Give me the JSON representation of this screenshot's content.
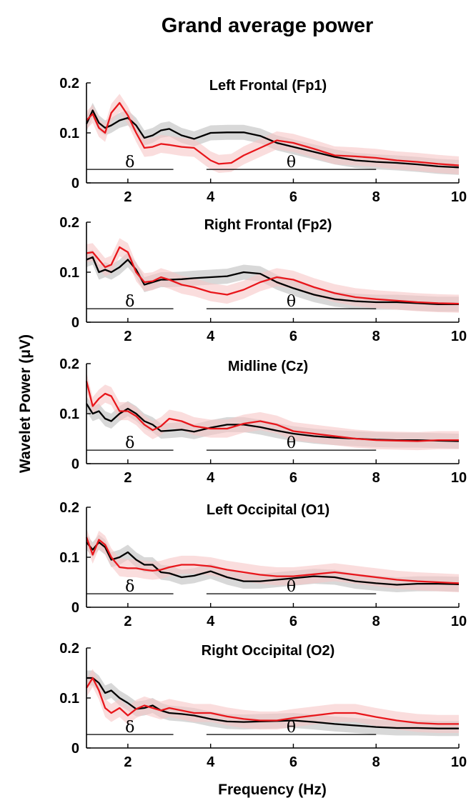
{
  "colors": {
    "series_1": "#000000",
    "series_2": "#e8161b",
    "band_1": "#c8c8c8",
    "band_2": "#f7c6c6"
  },
  "chart_data": {
    "type": "line",
    "title": "Grand average power",
    "xlabel": "Frequency (Hz)",
    "ylabel": "Wavelet Power (μV)",
    "xlim": [
      1,
      10
    ],
    "ylim": [
      0,
      0.2
    ],
    "xticks": [
      "2",
      "4",
      "6",
      "8",
      "10"
    ],
    "yticks": [
      "0",
      "0.1",
      "0.2"
    ],
    "grid": false,
    "bands": [
      {
        "label": "δ",
        "from": 1,
        "to": 3.1,
        "y": 0.027
      },
      {
        "label": "θ",
        "from": 3.9,
        "to": 8,
        "y": 0.027
      }
    ],
    "panels": [
      {
        "title": "Left Frontal (Fp1)",
        "series": [
          {
            "x": [
              1,
              1.15,
              1.3,
              1.45,
              1.6,
              1.8,
              2,
              2.2,
              2.4,
              2.6,
              2.8,
              3,
              3.3,
              3.6,
              4,
              4.4,
              4.8,
              5.2,
              5.6,
              6,
              6.5,
              7,
              7.5,
              8,
              8.5,
              9,
              9.5,
              10
            ],
            "values": [
              0.118,
              0.145,
              0.12,
              0.11,
              0.115,
              0.125,
              0.13,
              0.115,
              0.09,
              0.095,
              0.105,
              0.108,
              0.095,
              0.088,
              0.1,
              0.101,
              0.101,
              0.094,
              0.08,
              0.072,
              0.062,
              0.052,
              0.045,
              0.042,
              0.04,
              0.037,
              0.033,
              0.031
            ],
            "error": 0.015
          },
          {
            "x": [
              1,
              1.15,
              1.3,
              1.45,
              1.6,
              1.8,
              2,
              2.2,
              2.4,
              2.6,
              2.8,
              3,
              3.3,
              3.6,
              4,
              4.2,
              4.5,
              4.8,
              5.2,
              5.6,
              6,
              6.5,
              7,
              7.5,
              8,
              8.5,
              9,
              9.5,
              10
            ],
            "values": [
              0.125,
              0.138,
              0.11,
              0.1,
              0.14,
              0.16,
              0.135,
              0.1,
              0.07,
              0.072,
              0.078,
              0.076,
              0.072,
              0.07,
              0.045,
              0.038,
              0.04,
              0.055,
              0.07,
              0.085,
              0.08,
              0.068,
              0.055,
              0.053,
              0.05,
              0.045,
              0.042,
              0.038,
              0.035
            ],
            "error": 0.018
          }
        ]
      },
      {
        "title": "Right Frontal (Fp2)",
        "series": [
          {
            "x": [
              1,
              1.15,
              1.3,
              1.45,
              1.6,
              1.8,
              2,
              2.2,
              2.4,
              2.6,
              2.8,
              3,
              3.3,
              3.6,
              4,
              4.4,
              4.8,
              5.2,
              5.6,
              6,
              6.5,
              7,
              7.5,
              8,
              8.5,
              9,
              9.5,
              10
            ],
            "values": [
              0.125,
              0.13,
              0.1,
              0.105,
              0.1,
              0.11,
              0.125,
              0.105,
              0.075,
              0.08,
              0.085,
              0.085,
              0.086,
              0.088,
              0.09,
              0.092,
              0.1,
              0.097,
              0.08,
              0.068,
              0.055,
              0.046,
              0.042,
              0.04,
              0.04,
              0.038,
              0.036,
              0.036
            ],
            "error": 0.015
          },
          {
            "x": [
              1,
              1.15,
              1.3,
              1.45,
              1.6,
              1.8,
              2,
              2.2,
              2.4,
              2.6,
              2.8,
              3,
              3.3,
              3.6,
              4,
              4.4,
              4.8,
              5.2,
              5.6,
              6,
              6.5,
              7,
              7.5,
              8,
              8.5,
              9,
              9.5,
              10
            ],
            "values": [
              0.138,
              0.14,
              0.125,
              0.11,
              0.115,
              0.15,
              0.14,
              0.1,
              0.08,
              0.082,
              0.09,
              0.085,
              0.075,
              0.07,
              0.06,
              0.055,
              0.065,
              0.08,
              0.09,
              0.085,
              0.07,
              0.058,
              0.05,
              0.046,
              0.043,
              0.04,
              0.038,
              0.037
            ],
            "error": 0.018
          }
        ]
      },
      {
        "title": "Midline (Cz)",
        "series": [
          {
            "x": [
              1,
              1.15,
              1.3,
              1.45,
              1.6,
              1.8,
              2,
              2.2,
              2.4,
              2.6,
              2.8,
              3,
              3.3,
              3.6,
              4,
              4.4,
              4.8,
              5.2,
              5.6,
              6,
              6.5,
              7,
              7.5,
              8,
              8.5,
              9,
              9.5,
              10
            ],
            "values": [
              0.12,
              0.1,
              0.105,
              0.09,
              0.085,
              0.1,
              0.11,
              0.1,
              0.085,
              0.078,
              0.065,
              0.066,
              0.068,
              0.064,
              0.072,
              0.078,
              0.078,
              0.073,
              0.066,
              0.06,
              0.055,
              0.052,
              0.05,
              0.048,
              0.047,
              0.047,
              0.046,
              0.045
            ],
            "error": 0.015
          },
          {
            "x": [
              1,
              1.15,
              1.3,
              1.45,
              1.6,
              1.8,
              2,
              2.2,
              2.4,
              2.6,
              2.8,
              3,
              3.3,
              3.6,
              4,
              4.4,
              4.8,
              5.2,
              5.6,
              6,
              6.5,
              7,
              7.5,
              8,
              8.5,
              9,
              9.5,
              10
            ],
            "values": [
              0.165,
              0.115,
              0.13,
              0.14,
              0.135,
              0.105,
              0.105,
              0.095,
              0.078,
              0.067,
              0.075,
              0.09,
              0.085,
              0.075,
              0.07,
              0.07,
              0.08,
              0.085,
              0.078,
              0.065,
              0.06,
              0.055,
              0.05,
              0.047,
              0.046,
              0.045,
              0.047,
              0.047
            ],
            "error": 0.018
          }
        ]
      },
      {
        "title": "Left Occipital (O1)",
        "series": [
          {
            "x": [
              1,
              1.15,
              1.3,
              1.45,
              1.6,
              1.8,
              2,
              2.2,
              2.4,
              2.6,
              2.8,
              3,
              3.3,
              3.6,
              4,
              4.4,
              4.8,
              5.2,
              5.6,
              6,
              6.5,
              7,
              7.5,
              8,
              8.5,
              9,
              9.5,
              10
            ],
            "values": [
              0.13,
              0.115,
              0.13,
              0.12,
              0.095,
              0.1,
              0.11,
              0.095,
              0.085,
              0.085,
              0.07,
              0.068,
              0.06,
              0.063,
              0.072,
              0.06,
              0.052,
              0.052,
              0.055,
              0.058,
              0.062,
              0.06,
              0.052,
              0.048,
              0.045,
              0.047,
              0.047,
              0.046
            ],
            "error": 0.015
          },
          {
            "x": [
              1,
              1.15,
              1.3,
              1.45,
              1.6,
              1.8,
              2,
              2.2,
              2.4,
              2.6,
              2.8,
              3,
              3.3,
              3.6,
              4,
              4.4,
              4.8,
              5.2,
              5.6,
              6,
              6.5,
              7,
              7.5,
              8,
              8.5,
              9,
              9.5,
              10
            ],
            "values": [
              0.14,
              0.105,
              0.135,
              0.125,
              0.1,
              0.08,
              0.078,
              0.078,
              0.075,
              0.073,
              0.075,
              0.08,
              0.085,
              0.085,
              0.082,
              0.075,
              0.07,
              0.065,
              0.062,
              0.062,
              0.066,
              0.07,
              0.065,
              0.06,
              0.055,
              0.052,
              0.05,
              0.048
            ],
            "error": 0.018
          }
        ]
      },
      {
        "title": "Right Occipital (O2)",
        "series": [
          {
            "x": [
              1,
              1.15,
              1.3,
              1.45,
              1.6,
              1.8,
              2,
              2.2,
              2.4,
              2.6,
              2.8,
              3,
              3.3,
              3.6,
              4,
              4.4,
              4.8,
              5.2,
              5.6,
              6,
              6.5,
              7,
              7.5,
              8,
              8.5,
              9,
              9.5,
              10
            ],
            "values": [
              0.14,
              0.14,
              0.13,
              0.11,
              0.115,
              0.1,
              0.09,
              0.078,
              0.08,
              0.085,
              0.075,
              0.07,
              0.068,
              0.065,
              0.058,
              0.053,
              0.052,
              0.053,
              0.054,
              0.055,
              0.052,
              0.048,
              0.045,
              0.042,
              0.04,
              0.04,
              0.039,
              0.039
            ],
            "error": 0.015
          },
          {
            "x": [
              1,
              1.15,
              1.3,
              1.45,
              1.6,
              1.8,
              2,
              2.2,
              2.4,
              2.6,
              2.8,
              3,
              3.3,
              3.6,
              4,
              4.4,
              4.8,
              5.2,
              5.6,
              6,
              6.5,
              7,
              7.5,
              8,
              8.5,
              9,
              9.5,
              10
            ],
            "values": [
              0.12,
              0.14,
              0.115,
              0.08,
              0.07,
              0.08,
              0.065,
              0.078,
              0.085,
              0.08,
              0.075,
              0.08,
              0.075,
              0.07,
              0.07,
              0.063,
              0.058,
              0.055,
              0.055,
              0.06,
              0.065,
              0.07,
              0.07,
              0.062,
              0.055,
              0.05,
              0.048,
              0.048
            ],
            "error": 0.018
          }
        ]
      }
    ]
  }
}
